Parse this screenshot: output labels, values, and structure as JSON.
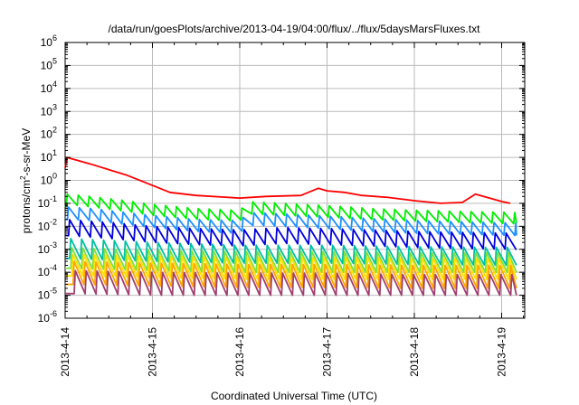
{
  "chart_data": {
    "type": "line",
    "title": "/data/run/goesPlots/archive/2013-04-19/04:00/flux/../flux/5daysMarsFluxes.txt",
    "xlabel": "Coordinated Universal Time (UTC)",
    "ylabel": "protons/cm2-s-sr-MeV",
    "ylabel_parts": {
      "before": "protons/cm",
      "sup": "2",
      "after": "-s-sr-MeV"
    },
    "x_tick_labels": [
      "2013-4-14",
      "2013-4-15",
      "2013-4-16",
      "2013-4-17",
      "2013-4-18",
      "2013-4-19"
    ],
    "xlim": [
      0,
      5.17
    ],
    "yscale": "log",
    "ylim_exponent": [
      -6,
      6
    ],
    "y_tick_exponents": [
      -6,
      -5,
      -4,
      -3,
      -2,
      -1,
      0,
      1,
      2,
      3,
      4,
      5,
      6
    ],
    "grid": true,
    "series": [
      {
        "color": "#ff0000",
        "sawtooth": false,
        "x": [
          0.0,
          0.02,
          0.3,
          0.7,
          1.0,
          1.2,
          1.5,
          2.0,
          2.3,
          2.7,
          2.9,
          3.0,
          3.2,
          3.4,
          3.7,
          4.0,
          4.3,
          4.55,
          4.7,
          5.0,
          5.1
        ],
        "y": [
          3.5,
          10.0,
          5.0,
          1.7,
          0.6,
          0.3,
          0.22,
          0.17,
          0.2,
          0.22,
          0.45,
          0.35,
          0.3,
          0.22,
          0.18,
          0.13,
          0.1,
          0.11,
          0.25,
          0.12,
          0.1
        ]
      },
      {
        "color": "#00ee00",
        "sawtooth": true,
        "x": [
          0.0,
          0.02,
          0.3,
          0.7,
          1.0,
          1.5,
          2.0,
          2.1,
          2.5,
          3.0,
          3.5,
          4.0,
          4.5,
          5.17
        ],
        "peak": [
          0.2,
          0.25,
          0.2,
          0.13,
          0.09,
          0.06,
          0.05,
          0.12,
          0.1,
          0.08,
          0.06,
          0.05,
          0.045,
          0.04
        ],
        "trough": [
          0.07,
          0.09,
          0.07,
          0.045,
          0.03,
          0.02,
          0.017,
          0.035,
          0.03,
          0.025,
          0.02,
          0.017,
          0.015,
          0.013
        ]
      },
      {
        "color": "#1e90ff",
        "sawtooth": true,
        "x": [
          0.0,
          0.3,
          0.7,
          1.0,
          1.5,
          2.0,
          2.1,
          2.5,
          3.0,
          3.5,
          4.0,
          4.5,
          5.17
        ],
        "peak": [
          0.07,
          0.06,
          0.04,
          0.03,
          0.02,
          0.018,
          0.04,
          0.035,
          0.028,
          0.022,
          0.018,
          0.016,
          0.014
        ],
        "trough": [
          0.02,
          0.018,
          0.012,
          0.009,
          0.006,
          0.005,
          0.011,
          0.01,
          0.008,
          0.006,
          0.005,
          0.0045,
          0.004
        ]
      },
      {
        "color": "#0000dd",
        "sawtooth": true,
        "x": [
          0.0,
          0.5,
          1.0,
          1.5,
          2.0,
          2.5,
          3.0,
          3.5,
          4.0,
          4.5,
          5.17
        ],
        "peak": [
          0.02,
          0.015,
          0.01,
          0.008,
          0.007,
          0.009,
          0.008,
          0.007,
          0.006,
          0.0055,
          0.005
        ],
        "trough": [
          0.004,
          0.003,
          0.002,
          0.0016,
          0.0014,
          0.0018,
          0.0016,
          0.0014,
          0.0012,
          0.0011,
          0.001
        ]
      },
      {
        "color": "#00c0a0",
        "sawtooth": true,
        "x": [
          0.0,
          1.0,
          2.0,
          3.0,
          4.0,
          5.17
        ],
        "peak": [
          0.003,
          0.002,
          0.0015,
          0.0015,
          0.0013,
          0.0012
        ],
        "trough": [
          0.0004,
          0.0003,
          0.00025,
          0.00025,
          0.00022,
          0.0002
        ]
      },
      {
        "color": "#80e040",
        "sawtooth": true,
        "x": [
          0.0,
          1.0,
          2.0,
          3.0,
          4.0,
          5.17
        ],
        "peak": [
          0.0012,
          0.0009,
          0.0008,
          0.0008,
          0.0007,
          0.0007
        ],
        "trough": [
          0.00015,
          0.00012,
          0.0001,
          0.0001,
          0.0001,
          0.0001
        ]
      },
      {
        "color": "#ffe000",
        "sawtooth": true,
        "x": [
          0.0,
          1.0,
          2.0,
          3.0,
          4.0,
          5.17
        ],
        "peak": [
          0.0006,
          0.0005,
          0.00045,
          0.00045,
          0.0004,
          0.0004
        ],
        "trough": [
          7e-05,
          6e-05,
          5e-05,
          5e-05,
          5e-05,
          5e-05
        ]
      },
      {
        "color": "#ffa500",
        "sawtooth": true,
        "x": [
          0.0,
          1.0,
          2.0,
          3.0,
          4.0,
          5.17
        ],
        "peak": [
          0.0003,
          0.00025,
          0.00022,
          0.00022,
          0.0002,
          0.0002
        ],
        "trough": [
          3e-05,
          2.5e-05,
          2.2e-05,
          2.2e-05,
          2e-05,
          2e-05
        ]
      },
      {
        "color": "#a04070",
        "sawtooth": true,
        "x": [
          0.0,
          1.0,
          2.0,
          3.0,
          4.0,
          5.17
        ],
        "peak": [
          0.00012,
          0.0001,
          9e-05,
          9e-05,
          8e-05,
          8e-05
        ],
        "trough": [
          1.2e-05,
          1e-05,
          1e-05,
          1e-05,
          1e-05,
          1e-05
        ]
      }
    ]
  }
}
